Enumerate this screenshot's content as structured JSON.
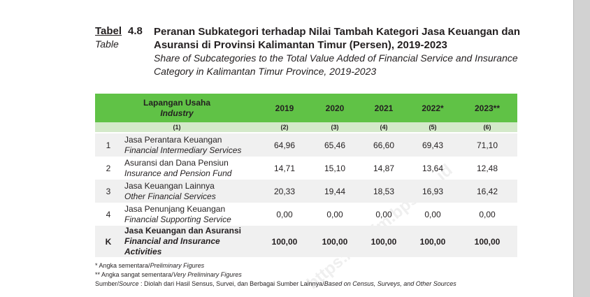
{
  "caption": {
    "tabel_label": "Tabel",
    "tabel_number": "4.8",
    "table_label_en": "Table",
    "title_id": "Peranan Subkategori terhadap Nilai Tambah Kategori Jasa Keuangan dan Asuransi di Provinsi Kalimantan Timur (Persen), 2019-2023",
    "title_en": "Share of Subcategories to the Total Value Added of Financial Service and Insurance Category in Kalimantan Timur Province, 2019-2023"
  },
  "table": {
    "header_id": "Lapangan Usaha",
    "header_en": "Industry",
    "years": [
      "2019",
      "2020",
      "2021",
      "2022*",
      "2023**"
    ],
    "col_numbers": [
      "(1)",
      "(2)",
      "(3)",
      "(4)",
      "(5)",
      "(6)"
    ],
    "rows": [
      {
        "no": "1",
        "name_id": "Jasa Perantara Keuangan",
        "name_en": "Financial Intermediary Services",
        "values": [
          "64,96",
          "65,46",
          "66,60",
          "69,43",
          "71,10"
        ]
      },
      {
        "no": "2",
        "name_id": "Asuransi dan Dana Pensiun",
        "name_en": "Insurance and Pension Fund",
        "values": [
          "14,71",
          "15,10",
          "14,87",
          "13,64",
          "12,48"
        ]
      },
      {
        "no": "3",
        "name_id": "Jasa Keuangan Lainnya",
        "name_en": "Other Financial Services",
        "values": [
          "20,33",
          "19,44",
          "18,53",
          "16,93",
          "16,42"
        ]
      },
      {
        "no": "4",
        "name_id": "Jasa Penunjang Keuangan",
        "name_en": "Financial Supporting Service",
        "values": [
          "0,00",
          "0,00",
          "0,00",
          "0,00",
          "0,00"
        ]
      },
      {
        "no": "K",
        "name_id": "Jasa Keuangan dan Asuransi",
        "name_en": "Financial and Insurance Activities",
        "values": [
          "100,00",
          "100,00",
          "100,00",
          "100,00",
          "100,00"
        ]
      }
    ]
  },
  "notes": {
    "note1_id": "* Angka sementara/",
    "note1_en": "Preliminary Figures",
    "note2_id": "** Angka sangat sementara/",
    "note2_en": "Very Preliminary Figures",
    "source_id": "Sumber/",
    "source_en": "Source",
    "source_text_id": " : Diolah dari Hasil Sensus, Survei, dan Berbagai Sumber Lainnya/",
    "source_text_en": "Based on Census, Surveys, and Other Sources"
  },
  "watermark": "https://kaltim.bps.go.id"
}
